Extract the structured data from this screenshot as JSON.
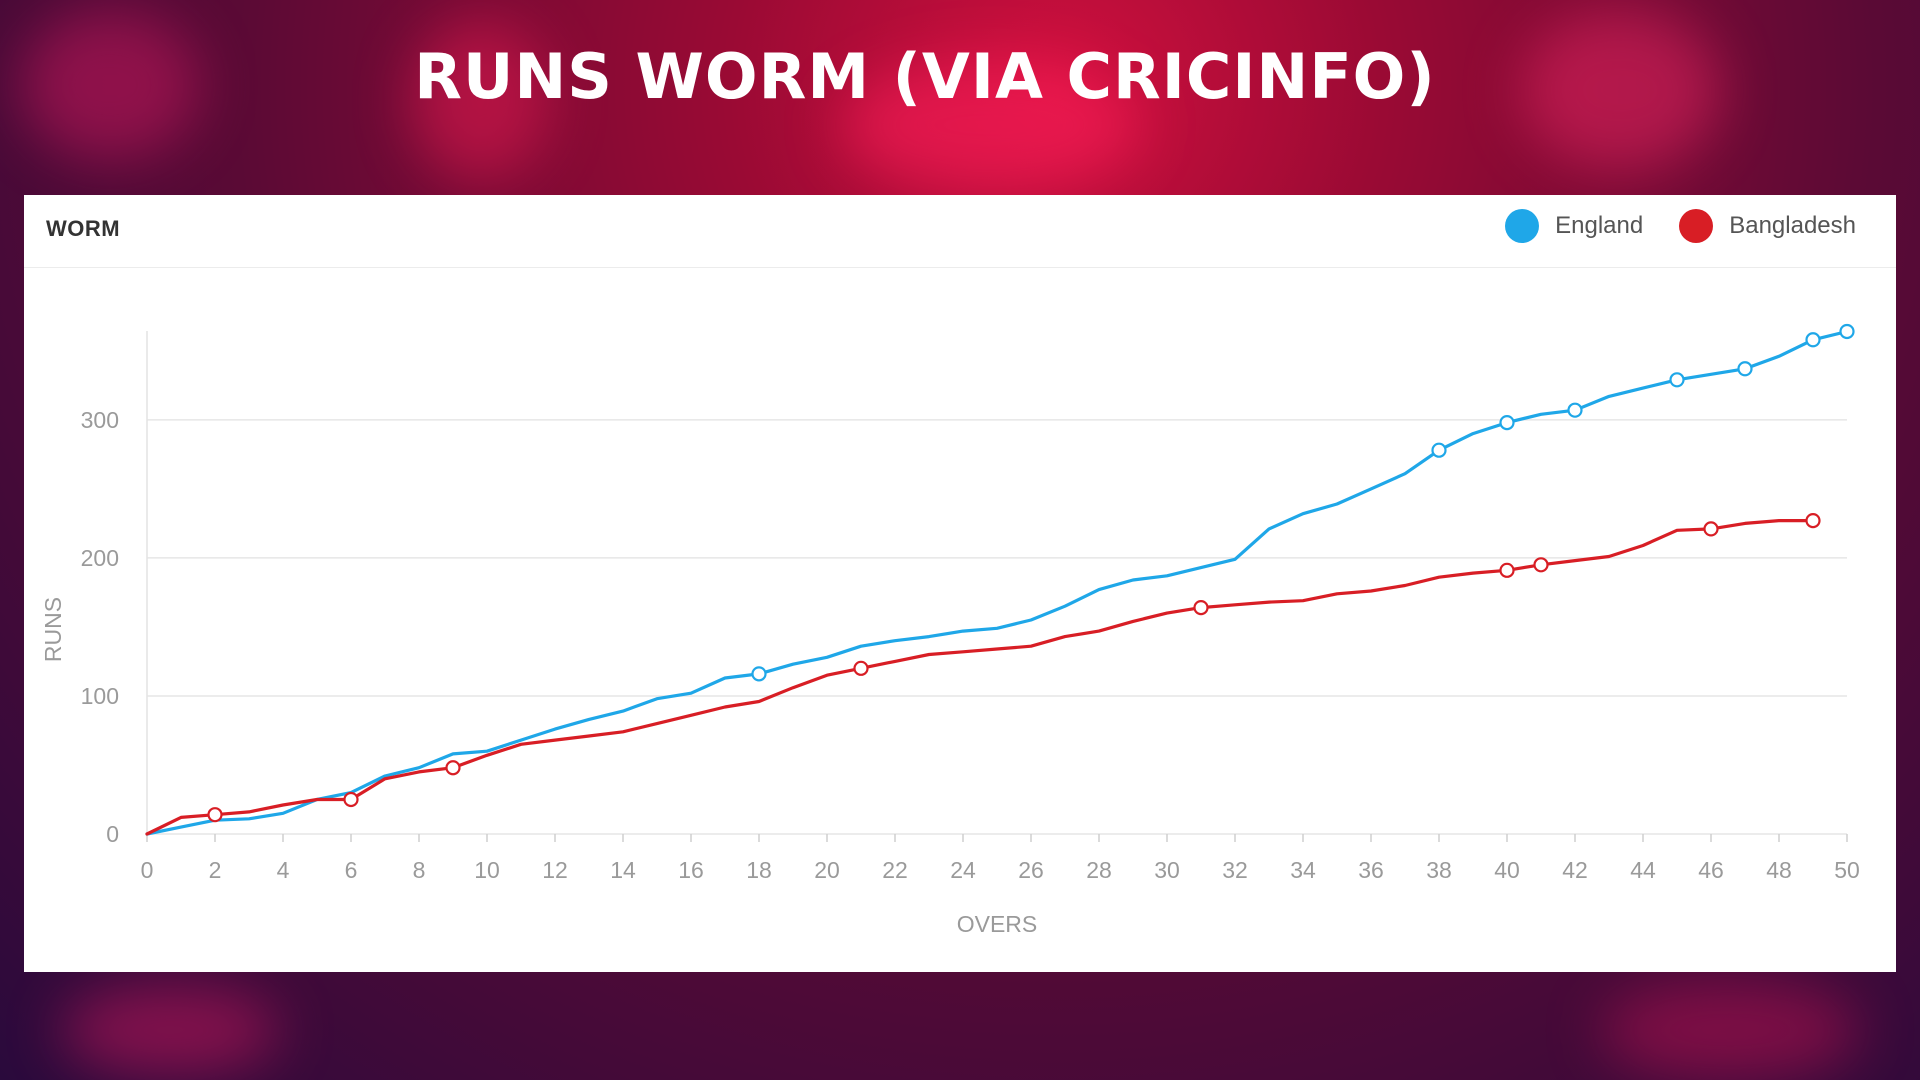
{
  "page": {
    "title": "RUNS WORM (VIA CRICINFO)"
  },
  "card": {
    "title": "WORM"
  },
  "chart_data": {
    "type": "line",
    "title": "WORM",
    "xlabel": "OVERS",
    "ylabel": "RUNS",
    "xlim": [
      0,
      50
    ],
    "ylim": [
      0,
      360
    ],
    "x_ticks": [
      0,
      2,
      4,
      6,
      8,
      10,
      12,
      14,
      16,
      18,
      20,
      22,
      24,
      26,
      28,
      30,
      32,
      34,
      36,
      38,
      40,
      42,
      44,
      46,
      48,
      50
    ],
    "y_ticks": [
      0,
      100,
      200,
      300
    ],
    "grid": true,
    "legend": "top-right",
    "series": [
      {
        "name": "England",
        "color": "#1fa7e8",
        "x": [
          0,
          1,
          2,
          3,
          4,
          5,
          6,
          7,
          8,
          9,
          10,
          11,
          12,
          13,
          14,
          15,
          16,
          17,
          18,
          19,
          20,
          21,
          22,
          23,
          24,
          25,
          26,
          27,
          28,
          29,
          30,
          31,
          32,
          33,
          34,
          35,
          36,
          37,
          38,
          39,
          40,
          41,
          42,
          43,
          44,
          45,
          46,
          47,
          48,
          49,
          50
        ],
        "values": [
          0,
          5,
          10,
          11,
          15,
          25,
          30,
          42,
          48,
          58,
          60,
          68,
          76,
          83,
          89,
          98,
          102,
          113,
          116,
          123,
          128,
          136,
          140,
          143,
          147,
          149,
          155,
          165,
          177,
          184,
          187,
          193,
          199,
          221,
          232,
          239,
          250,
          261,
          278,
          290,
          298,
          304,
          307,
          317,
          323,
          329,
          333,
          337,
          346,
          358,
          364
        ],
        "wickets_at": [
          18,
          38,
          40,
          42,
          45,
          47,
          49,
          50
        ]
      },
      {
        "name": "Bangladesh",
        "color": "#d81e25",
        "x": [
          0,
          1,
          2,
          3,
          4,
          5,
          6,
          7,
          8,
          9,
          10,
          11,
          12,
          13,
          14,
          15,
          16,
          17,
          18,
          19,
          20,
          21,
          22,
          23,
          24,
          25,
          26,
          27,
          28,
          29,
          30,
          31,
          32,
          33,
          34,
          35,
          36,
          37,
          38,
          39,
          40,
          41,
          42,
          43,
          44,
          45,
          46,
          47,
          48,
          49
        ],
        "values": [
          0,
          12,
          14,
          16,
          21,
          25,
          25,
          40,
          45,
          48,
          57,
          65,
          68,
          71,
          74,
          80,
          86,
          92,
          96,
          106,
          115,
          120,
          125,
          130,
          132,
          134,
          136,
          143,
          147,
          154,
          160,
          164,
          166,
          168,
          169,
          174,
          176,
          180,
          186,
          189,
          191,
          195,
          198,
          201,
          209,
          220,
          221,
          225,
          227,
          227
        ],
        "wickets_at": [
          2,
          6,
          9,
          21,
          31,
          40,
          41,
          46,
          49
        ]
      }
    ]
  }
}
